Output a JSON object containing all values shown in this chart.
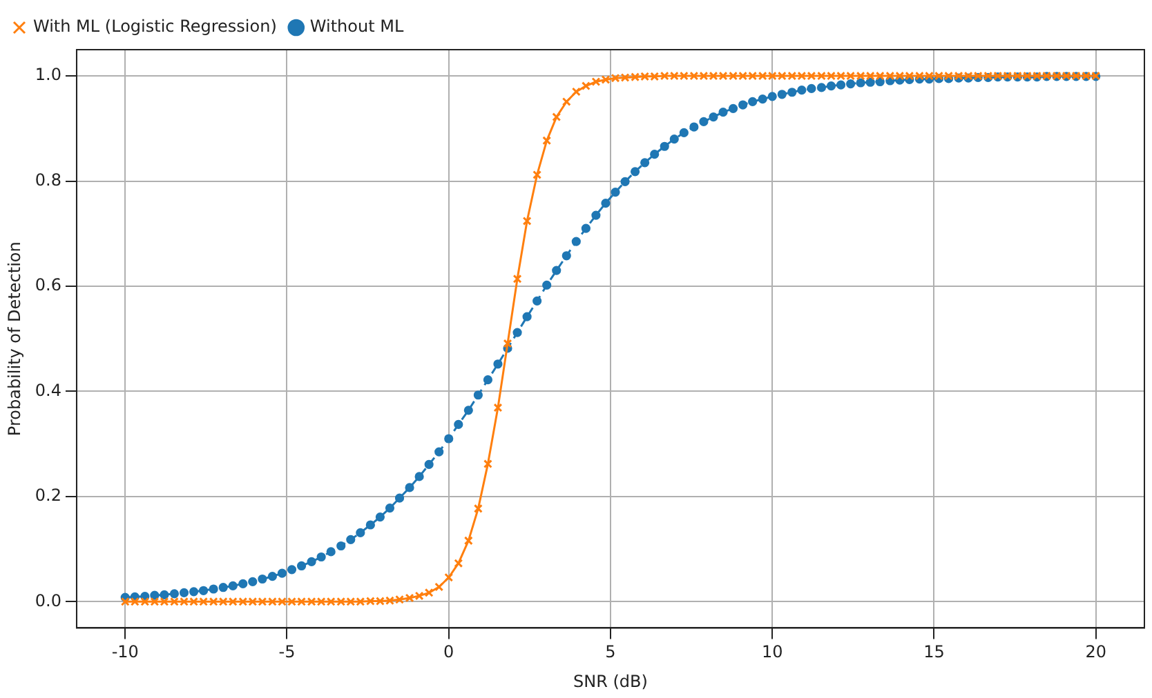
{
  "chart_data": {
    "type": "line",
    "xlabel": "SNR (dB)",
    "ylabel": "Probability of Detection",
    "x": [
      -10,
      -9.7,
      -9.39,
      -9.09,
      -8.79,
      -8.48,
      -8.18,
      -7.88,
      -7.58,
      -7.27,
      -6.97,
      -6.67,
      -6.36,
      -6.06,
      -5.76,
      -5.45,
      -5.15,
      -4.85,
      -4.55,
      -4.24,
      -3.94,
      -3.64,
      -3.33,
      -3.03,
      -2.73,
      -2.42,
      -2.12,
      -1.82,
      -1.52,
      -1.21,
      -0.91,
      -0.61,
      -0.3,
      0,
      0.3,
      0.61,
      0.91,
      1.21,
      1.52,
      1.82,
      2.12,
      2.42,
      2.73,
      3.03,
      3.33,
      3.64,
      3.94,
      4.24,
      4.55,
      4.85,
      5.15,
      5.45,
      5.76,
      6.06,
      6.36,
      6.67,
      6.97,
      7.27,
      7.58,
      7.88,
      8.18,
      8.48,
      8.79,
      9.09,
      9.39,
      9.7,
      10,
      10.3,
      10.61,
      10.91,
      11.21,
      11.52,
      11.82,
      12.12,
      12.42,
      12.73,
      13.03,
      13.33,
      13.64,
      13.94,
      14.24,
      14.55,
      14.85,
      15.15,
      15.45,
      15.76,
      16.06,
      16.36,
      16.67,
      16.97,
      17.27,
      17.58,
      17.88,
      18.18,
      18.48,
      18.79,
      19.09,
      19.39,
      19.7,
      20
    ],
    "series": [
      {
        "name": "Without ML",
        "color": "#1f77b4",
        "marker": "circle",
        "line_style": "dashed",
        "values": [
          0.008,
          0.009,
          0.01,
          0.012,
          0.013,
          0.015,
          0.017,
          0.019,
          0.021,
          0.024,
          0.027,
          0.03,
          0.034,
          0.038,
          0.043,
          0.048,
          0.054,
          0.061,
          0.068,
          0.076,
          0.085,
          0.095,
          0.106,
          0.118,
          0.131,
          0.146,
          0.161,
          0.178,
          0.197,
          0.217,
          0.238,
          0.261,
          0.285,
          0.31,
          0.337,
          0.364,
          0.393,
          0.422,
          0.452,
          0.482,
          0.512,
          0.542,
          0.572,
          0.602,
          0.63,
          0.658,
          0.685,
          0.71,
          0.735,
          0.758,
          0.779,
          0.799,
          0.818,
          0.835,
          0.851,
          0.866,
          0.88,
          0.892,
          0.903,
          0.913,
          0.922,
          0.931,
          0.938,
          0.945,
          0.951,
          0.956,
          0.961,
          0.965,
          0.969,
          0.973,
          0.976,
          0.978,
          0.981,
          0.983,
          0.985,
          0.987,
          0.988,
          0.989,
          0.991,
          0.992,
          0.993,
          0.994,
          0.994,
          0.995,
          0.995,
          0.996,
          0.996,
          0.997,
          0.997,
          0.998,
          0.998,
          0.998,
          0.998,
          0.998,
          0.999,
          0.999,
          0.999,
          0.999,
          0.999,
          0.999
        ]
      },
      {
        "name": "With ML (Logistic Regression)",
        "color": "#ff7f0e",
        "marker": "cross",
        "line_style": "solid",
        "values": [
          0,
          0,
          0,
          0,
          0,
          0,
          0,
          0,
          0,
          0,
          0,
          0,
          0,
          0,
          0,
          0,
          0,
          0,
          0,
          0,
          0,
          0,
          0,
          0,
          0,
          0.001,
          0.001,
          0.002,
          0.004,
          0.007,
          0.011,
          0.017,
          0.028,
          0.046,
          0.073,
          0.116,
          0.177,
          0.262,
          0.369,
          0.491,
          0.614,
          0.724,
          0.812,
          0.877,
          0.922,
          0.951,
          0.97,
          0.981,
          0.989,
          0.993,
          0.996,
          0.997,
          0.998,
          0.999,
          0.999,
          1,
          1,
          1,
          1,
          1,
          1,
          1,
          1,
          1,
          1,
          1,
          1,
          1,
          1,
          1,
          1,
          1,
          1,
          1,
          1,
          1,
          1,
          1,
          1,
          1,
          1,
          1,
          1,
          1,
          1,
          1,
          1,
          1,
          1,
          1,
          1,
          1,
          1,
          1,
          1,
          1,
          1,
          1,
          1,
          1
        ]
      }
    ],
    "xlim": [
      -11.5,
      21.5
    ],
    "xticks": [
      -10,
      -5,
      0,
      5,
      10,
      15,
      20
    ],
    "ylim": [
      -0.05,
      1.05
    ],
    "yticks": [
      {
        "value": 0,
        "label": "0.0"
      },
      {
        "value": 0.2,
        "label": "0.2"
      },
      {
        "value": 0.4,
        "label": "0.4"
      },
      {
        "value": 0.6,
        "label": "0.6"
      },
      {
        "value": 0.8,
        "label": "0.8"
      },
      {
        "value": 1,
        "label": "1.0"
      }
    ],
    "grid": true,
    "legend": "top left"
  }
}
